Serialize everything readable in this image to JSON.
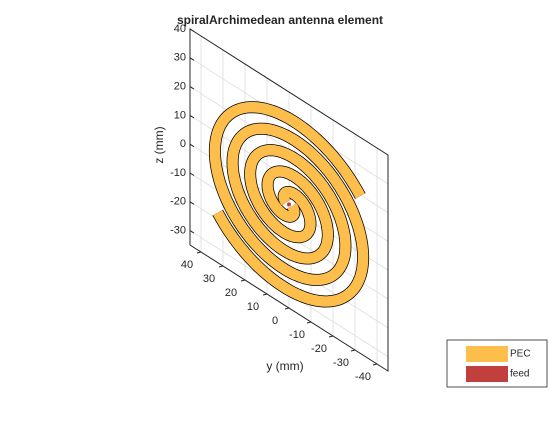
{
  "chart_data": {
    "type": "antenna3d",
    "title": "spiralArchimedean antenna element",
    "ylabel": "y (mm)",
    "zlabel": "z (mm)",
    "ylim": [
      45,
      -45
    ],
    "zlim": [
      -35,
      40
    ],
    "yticks": [
      40,
      30,
      20,
      10,
      0,
      -10,
      -20,
      -30,
      -40
    ],
    "zticks": [
      40,
      30,
      20,
      10,
      0,
      -10,
      -20,
      -30
    ],
    "grid": true,
    "legend": [
      {
        "name": "PEC",
        "color": "#fdbe4b"
      },
      {
        "name": "feed",
        "color": "#c1403d"
      }
    ]
  }
}
